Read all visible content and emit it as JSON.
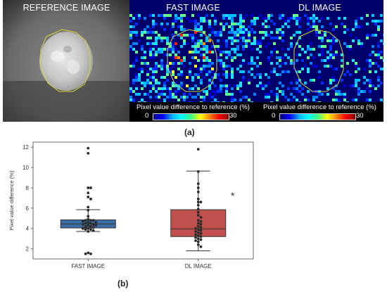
{
  "panels": [
    {
      "title": "REFERENCE IMAGE"
    },
    {
      "title": "FAST IMAGE",
      "colorbar": {
        "label": "Pixel value difference to reference (%)",
        "min": "0",
        "max": "30"
      }
    },
    {
      "title": "DL IMAGE",
      "colorbar": {
        "label": "Pixel value difference to reference (%)",
        "min": "0",
        "max": "30"
      }
    }
  ],
  "label_a": "(a)",
  "label_b": "(b)",
  "chart_data": {
    "type": "box",
    "ylabel": "Pixel value difference (%)",
    "ylim": [
      1,
      12.5
    ],
    "yticks": [
      2,
      4,
      6,
      8,
      10,
      12
    ],
    "categories": [
      "FAST IMAGE",
      "DL IMAGE"
    ],
    "annotation": "*",
    "colors": {
      "fast": "#3a6ea5",
      "dl": "#c0504d"
    },
    "boxes": [
      {
        "q1": 4.05,
        "median": 4.45,
        "q3": 4.85,
        "whisker_low": 3.7,
        "whisker_high": 5.85
      },
      {
        "q1": 3.2,
        "median": 3.95,
        "q3": 5.85,
        "whisker_low": 1.8,
        "whisker_high": 9.65
      }
    ],
    "points": [
      [
        11.9,
        11.4,
        8.0,
        8.0,
        7.5,
        7.1,
        6.9,
        6.1,
        5.8,
        5.2,
        4.9,
        4.8,
        4.8,
        4.8,
        4.7,
        4.6,
        4.6,
        4.5,
        4.5,
        4.4,
        4.4,
        4.3,
        4.3,
        4.2,
        4.2,
        4.1,
        4.0,
        4.0,
        3.9,
        3.9,
        3.8,
        3.7,
        1.6,
        1.5,
        1.5
      ],
      [
        11.8,
        9.6,
        8.4,
        8.0,
        7.6,
        6.9,
        6.6,
        6.6,
        6.3,
        5.9,
        5.6,
        5.3,
        5.1,
        4.8,
        4.7,
        4.5,
        4.4,
        4.2,
        4.1,
        4.0,
        3.9,
        3.8,
        3.7,
        3.6,
        3.5,
        3.4,
        3.3,
        3.2,
        3.1,
        3.0,
        2.9,
        2.8,
        2.7,
        2.4,
        2.2
      ]
    ]
  }
}
